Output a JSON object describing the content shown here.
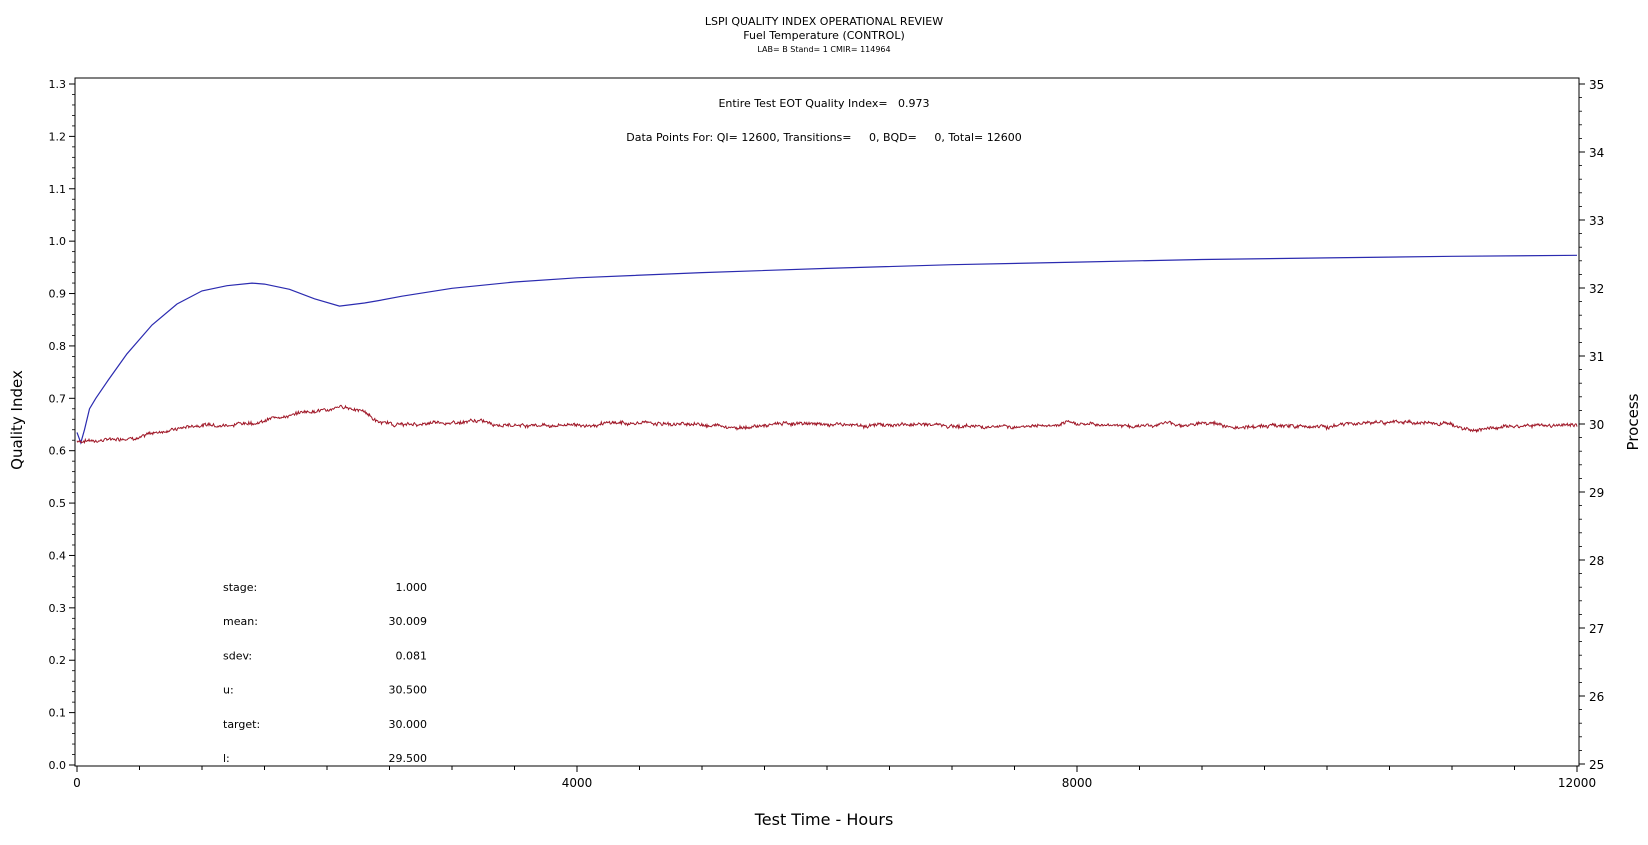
{
  "chart_data": {
    "type": "line",
    "title": "LSPI QUALITY INDEX OPERATIONAL REVIEW",
    "subtitle": "Fuel Temperature (CONTROL)",
    "subtitle2": "LAB= B Stand= 1 CMIR= 114964",
    "annotations": {
      "quality_index": "Entire Test EOT Quality Index=   0.973",
      "data_points": "Data Points For: QI= 12600, Transitions=     0, BQD=     0, Total= 12600"
    },
    "xlabel": "Test Time - Hours",
    "ylabel": "Quality Index",
    "y2label": "Process",
    "xlim": [
      0,
      12000
    ],
    "ylim": [
      0,
      1.3
    ],
    "y2lim": [
      25,
      35
    ],
    "x_ticks": [
      0,
      4000,
      8000,
      12000
    ],
    "y_ticks": [
      "0.0",
      "0.1",
      "0.2",
      "0.3",
      "0.4",
      "0.5",
      "0.6",
      "0.7",
      "0.8",
      "0.9",
      "1.0",
      "1.1",
      "1.2",
      "1.3"
    ],
    "y2_ticks": [
      "25",
      "26",
      "27",
      "28",
      "29",
      "30",
      "31",
      "32",
      "33",
      "34",
      "35"
    ],
    "grid": false,
    "series": [
      {
        "axis": "left",
        "color": "#2b2bb0",
        "x": [
          0,
          30,
          60,
          100,
          150,
          250,
          400,
          600,
          800,
          1000,
          1200,
          1400,
          1500,
          1700,
          1900,
          2100,
          2300,
          2400,
          2600,
          3000,
          3500,
          4000,
          5000,
          6000,
          7000,
          8000,
          9000,
          10000,
          11000,
          12000
        ],
        "values": [
          0.635,
          0.615,
          0.64,
          0.68,
          0.7,
          0.735,
          0.785,
          0.84,
          0.88,
          0.905,
          0.915,
          0.92,
          0.918,
          0.908,
          0.89,
          0.876,
          0.882,
          0.886,
          0.895,
          0.91,
          0.922,
          0.93,
          0.94,
          0.948,
          0.955,
          0.96,
          0.965,
          0.968,
          0.971,
          0.973
        ]
      },
      {
        "axis": "right",
        "color": "#a01828",
        "x": [
          0,
          300,
          600,
          900,
          1200,
          1500,
          1800,
          2100,
          2300,
          2400,
          2600,
          3000,
          3400,
          4000,
          5000,
          6000,
          7000,
          8000,
          9000,
          10000,
          11000,
          12000
        ],
        "values": [
          29.75,
          29.8,
          29.9,
          30.0,
          30.05,
          30.1,
          30.2,
          30.25,
          30.2,
          30.05,
          30.0,
          30.0,
          30.0,
          30.0,
          30.0,
          30.0,
          30.0,
          30.0,
          30.0,
          30.0,
          30.0,
          30.0
        ],
        "noise_sd": 0.03
      }
    ],
    "stats": [
      {
        "label": "stage:",
        "value": "1.000"
      },
      {
        "label": "mean:",
        "value": "30.009"
      },
      {
        "label": "sdev:",
        "value": "0.081"
      },
      {
        "label": "u:",
        "value": "30.500"
      },
      {
        "label": "target:",
        "value": "30.000"
      },
      {
        "label": "l:",
        "value": "29.500"
      }
    ]
  }
}
